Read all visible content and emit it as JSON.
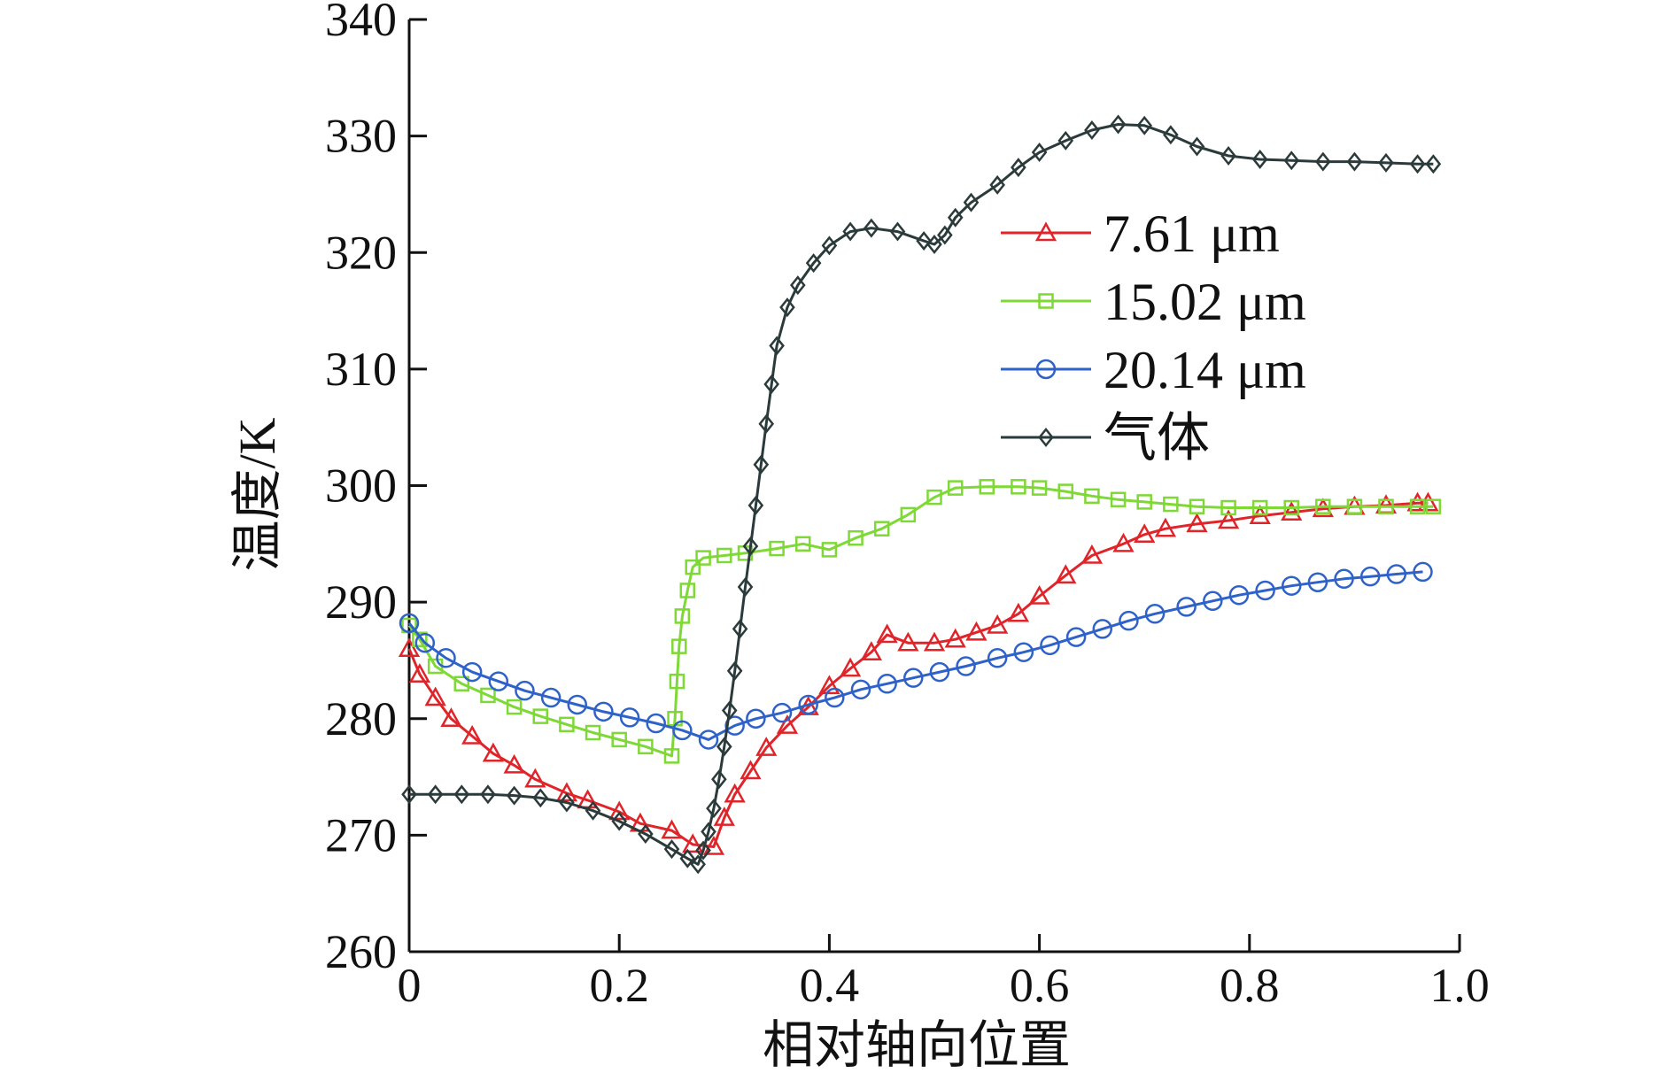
{
  "chart_data": {
    "type": "line",
    "title": "",
    "xlabel": "相对轴向位置",
    "ylabel": "温度/K",
    "xlim": [
      0,
      1.0
    ],
    "ylim": [
      260,
      340
    ],
    "xticks": [
      0,
      0.2,
      0.4,
      0.6,
      0.8,
      1.0
    ],
    "xtick_labels": [
      "0",
      "0.2",
      "0.4",
      "0.6",
      "0.8",
      "1.0"
    ],
    "yticks": [
      260,
      270,
      280,
      290,
      300,
      310,
      320,
      330,
      340
    ],
    "ytick_labels": [
      "260",
      "270",
      "280",
      "290",
      "300",
      "310",
      "320",
      "330",
      "340"
    ],
    "grid": false,
    "legend_position": "upper-right",
    "series": [
      {
        "name": "7.61 μm",
        "color": "#e0252a",
        "marker": "triangle",
        "x": [
          0,
          0.01,
          0.025,
          0.04,
          0.06,
          0.08,
          0.1,
          0.12,
          0.15,
          0.17,
          0.2,
          0.22,
          0.25,
          0.27,
          0.29,
          0.3,
          0.31,
          0.325,
          0.34,
          0.36,
          0.38,
          0.4,
          0.42,
          0.44,
          0.455,
          0.475,
          0.5,
          0.52,
          0.54,
          0.56,
          0.58,
          0.6,
          0.625,
          0.65,
          0.68,
          0.7,
          0.72,
          0.75,
          0.78,
          0.81,
          0.84,
          0.87,
          0.9,
          0.93,
          0.96,
          0.97
        ],
        "y": [
          286,
          283.8,
          281.8,
          280,
          278.5,
          277,
          276,
          274.8,
          273.6,
          273,
          272,
          271,
          270.4,
          269.2,
          269,
          271.5,
          273.5,
          275.5,
          277.5,
          279.4,
          281,
          282.8,
          284.3,
          285.7,
          287.2,
          286.5,
          286.5,
          286.8,
          287.4,
          288,
          289,
          290.5,
          292.3,
          294,
          295,
          295.8,
          296.3,
          296.7,
          297,
          297.4,
          297.7,
          298,
          298.2,
          298.3,
          298.5,
          298.5
        ]
      },
      {
        "name": "15.02 μm",
        "color": "#7ed835",
        "marker": "square",
        "x": [
          0,
          0.01,
          0.025,
          0.05,
          0.075,
          0.1,
          0.125,
          0.15,
          0.175,
          0.2,
          0.225,
          0.25,
          0.253,
          0.255,
          0.257,
          0.26,
          0.265,
          0.27,
          0.28,
          0.3,
          0.32,
          0.35,
          0.375,
          0.4,
          0.425,
          0.45,
          0.475,
          0.5,
          0.52,
          0.55,
          0.58,
          0.6,
          0.625,
          0.65,
          0.675,
          0.7,
          0.725,
          0.75,
          0.78,
          0.81,
          0.84,
          0.87,
          0.9,
          0.93,
          0.96,
          0.975
        ],
        "y": [
          288,
          286.8,
          284.5,
          283,
          282,
          281,
          280.2,
          279.5,
          278.8,
          278.2,
          277.6,
          276.8,
          280,
          283.2,
          286.2,
          288.8,
          291,
          293,
          293.8,
          294,
          294.2,
          294.6,
          295,
          294.5,
          295.5,
          296.3,
          297.5,
          299,
          299.8,
          299.9,
          299.9,
          299.8,
          299.5,
          299.1,
          298.8,
          298.6,
          298.4,
          298.2,
          298.1,
          298.1,
          298.1,
          298.2,
          298.2,
          298.2,
          298.2,
          298.2
        ]
      },
      {
        "name": "20.14  μm",
        "color": "#2e62c8",
        "marker": "circle",
        "x": [
          0,
          0.015,
          0.035,
          0.06,
          0.085,
          0.11,
          0.135,
          0.16,
          0.185,
          0.21,
          0.235,
          0.26,
          0.285,
          0.31,
          0.33,
          0.355,
          0.38,
          0.405,
          0.43,
          0.455,
          0.48,
          0.505,
          0.53,
          0.56,
          0.585,
          0.61,
          0.635,
          0.66,
          0.685,
          0.71,
          0.74,
          0.765,
          0.79,
          0.815,
          0.84,
          0.865,
          0.89,
          0.915,
          0.94,
          0.965
        ],
        "y": [
          288.2,
          286.5,
          285.2,
          284,
          283.2,
          282.4,
          281.8,
          281.2,
          280.6,
          280.1,
          279.6,
          279,
          278.2,
          279.4,
          280,
          280.5,
          281.2,
          281.8,
          282.5,
          283,
          283.5,
          284,
          284.5,
          285.2,
          285.7,
          286.3,
          287,
          287.7,
          288.4,
          289,
          289.6,
          290.1,
          290.6,
          291,
          291.4,
          291.7,
          292,
          292.2,
          292.4,
          292.6
        ]
      },
      {
        "name": "气体",
        "color": "#2b3a3a",
        "marker": "diamond",
        "x": [
          0,
          0.025,
          0.05,
          0.075,
          0.1,
          0.125,
          0.15,
          0.175,
          0.2,
          0.225,
          0.25,
          0.265,
          0.275,
          0.28,
          0.285,
          0.29,
          0.295,
          0.3,
          0.305,
          0.31,
          0.315,
          0.32,
          0.325,
          0.33,
          0.335,
          0.34,
          0.345,
          0.35,
          0.36,
          0.37,
          0.385,
          0.4,
          0.42,
          0.44,
          0.465,
          0.49,
          0.5,
          0.51,
          0.52,
          0.535,
          0.56,
          0.58,
          0.6,
          0.625,
          0.65,
          0.675,
          0.7,
          0.725,
          0.75,
          0.78,
          0.81,
          0.84,
          0.87,
          0.9,
          0.93,
          0.96,
          0.975
        ],
        "y": [
          273.5,
          273.5,
          273.5,
          273.5,
          273.4,
          273.2,
          272.8,
          272.1,
          271.2,
          270.1,
          268.8,
          268,
          267.5,
          268.7,
          270.3,
          272.3,
          274.8,
          277.6,
          280.7,
          284.1,
          287.7,
          291.3,
          294.8,
          298.3,
          301.8,
          305.3,
          308.7,
          312,
          315.3,
          317.2,
          319.1,
          320.6,
          321.8,
          322.1,
          321.8,
          321,
          320.7,
          321.5,
          323,
          324.3,
          325.8,
          327.3,
          328.6,
          329.6,
          330.5,
          331,
          330.9,
          330.1,
          329.1,
          328.3,
          328,
          327.9,
          327.8,
          327.8,
          327.7,
          327.6,
          327.6
        ]
      }
    ]
  }
}
